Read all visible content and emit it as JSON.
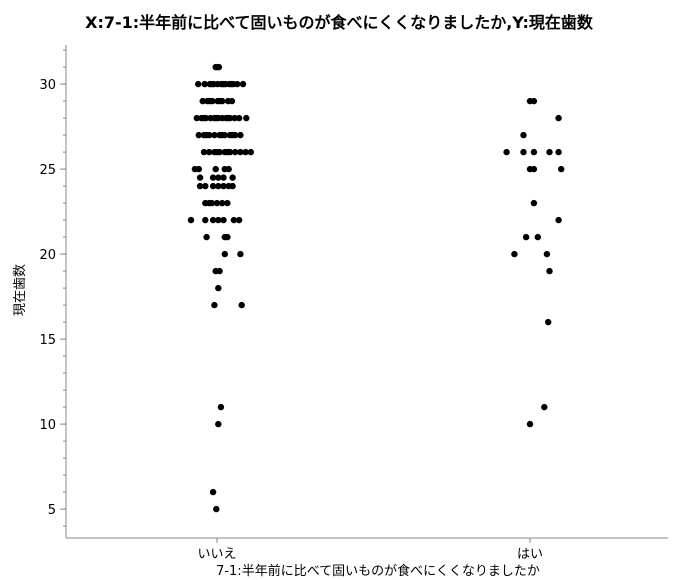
{
  "chart_data": {
    "type": "scatter",
    "title": "X:7-1:半年前に比べて固いものが食べにくくなりましたか,Y:現在歯数",
    "xlabel": "7-1:半年前に比べて固いものが食べにくくなりましたか",
    "ylabel": "現在歯数",
    "categories": [
      "いいえ",
      "はい"
    ],
    "ylim": [
      3.3,
      32.3
    ],
    "yticks": [
      5,
      10,
      15,
      20,
      25,
      30
    ],
    "grid": false,
    "series": [
      {
        "category": "いいえ",
        "color": "#000000",
        "points": [
          [
            0.0,
            31
          ],
          [
            0.15,
            31
          ],
          [
            -0.1,
            31
          ],
          [
            -1.45,
            30
          ],
          [
            -0.95,
            30
          ],
          [
            -0.55,
            30
          ],
          [
            -0.25,
            30
          ],
          [
            0.05,
            30
          ],
          [
            0.35,
            30
          ],
          [
            0.65,
            30
          ],
          [
            0.95,
            30
          ],
          [
            1.25,
            30
          ],
          [
            1.55,
            30
          ],
          [
            2.0,
            30
          ],
          [
            -0.4,
            30
          ],
          [
            0.5,
            30
          ],
          [
            1.1,
            30
          ],
          [
            -1.1,
            29
          ],
          [
            -0.75,
            29
          ],
          [
            -0.35,
            29
          ],
          [
            0.05,
            29
          ],
          [
            0.4,
            29
          ],
          [
            0.85,
            29
          ],
          [
            1.15,
            29
          ],
          [
            -0.55,
            29
          ],
          [
            0.2,
            29
          ],
          [
            -1.55,
            28
          ],
          [
            -1.2,
            28
          ],
          [
            -0.85,
            28
          ],
          [
            -0.5,
            28
          ],
          [
            -0.2,
            28
          ],
          [
            0.1,
            28
          ],
          [
            0.4,
            28
          ],
          [
            0.7,
            28
          ],
          [
            1.0,
            28
          ],
          [
            1.35,
            28
          ],
          [
            1.7,
            28
          ],
          [
            2.25,
            28
          ],
          [
            -1.0,
            28
          ],
          [
            -0.05,
            28
          ],
          [
            0.85,
            28
          ],
          [
            -1.4,
            27
          ],
          [
            -1.0,
            27
          ],
          [
            -0.6,
            27
          ],
          [
            -0.2,
            27
          ],
          [
            0.2,
            27
          ],
          [
            0.6,
            27
          ],
          [
            1.0,
            27
          ],
          [
            1.4,
            27
          ],
          [
            1.8,
            27
          ],
          [
            -0.8,
            27
          ],
          [
            0.4,
            27
          ],
          [
            1.2,
            27
          ],
          [
            -1.0,
            26
          ],
          [
            -0.6,
            26
          ],
          [
            -0.2,
            26
          ],
          [
            0.2,
            26
          ],
          [
            0.6,
            26
          ],
          [
            1.0,
            26
          ],
          [
            1.4,
            26
          ],
          [
            1.8,
            26
          ],
          [
            2.2,
            26
          ],
          [
            2.6,
            26
          ],
          [
            0.0,
            26
          ],
          [
            0.8,
            26
          ],
          [
            -1.7,
            25
          ],
          [
            -1.4,
            25
          ],
          [
            -0.1,
            25
          ],
          [
            0.6,
            25
          ],
          [
            0.9,
            25
          ],
          [
            -1.3,
            24.5
          ],
          [
            -0.3,
            24.5
          ],
          [
            0.1,
            24.5
          ],
          [
            0.5,
            24.5
          ],
          [
            1.2,
            24.5
          ],
          [
            -1.3,
            24
          ],
          [
            -0.9,
            24
          ],
          [
            -0.3,
            24
          ],
          [
            0.1,
            24
          ],
          [
            0.5,
            24
          ],
          [
            0.9,
            24
          ],
          [
            1.2,
            24
          ],
          [
            -0.9,
            23
          ],
          [
            -0.4,
            23
          ],
          [
            0.0,
            23
          ],
          [
            0.4,
            23
          ],
          [
            0.8,
            23
          ],
          [
            -0.6,
            23
          ],
          [
            -2.0,
            22
          ],
          [
            -0.9,
            22
          ],
          [
            -0.3,
            22
          ],
          [
            0.1,
            22
          ],
          [
            0.5,
            22
          ],
          [
            1.3,
            22
          ],
          [
            1.7,
            22
          ],
          [
            -0.8,
            21
          ],
          [
            0.6,
            21
          ],
          [
            0.8,
            21
          ],
          [
            0.6,
            20
          ],
          [
            1.8,
            20
          ],
          [
            -0.1,
            19
          ],
          [
            0.2,
            19
          ],
          [
            0.1,
            18
          ],
          [
            -0.2,
            17
          ],
          [
            1.9,
            17
          ],
          [
            0.3,
            11
          ],
          [
            0.1,
            10
          ],
          [
            -0.3,
            6
          ],
          [
            -0.05,
            5
          ]
        ]
      },
      {
        "category": "はい",
        "color": "#000000",
        "points": [
          [
            0.0,
            29
          ],
          [
            0.3,
            29
          ],
          [
            2.2,
            28
          ],
          [
            -0.5,
            27
          ],
          [
            -1.8,
            26
          ],
          [
            -0.5,
            26
          ],
          [
            0.3,
            26
          ],
          [
            1.5,
            26
          ],
          [
            2.2,
            26
          ],
          [
            0.0,
            25
          ],
          [
            0.3,
            25
          ],
          [
            2.4,
            25
          ],
          [
            0.3,
            23
          ],
          [
            2.2,
            22
          ],
          [
            -0.3,
            21
          ],
          [
            0.6,
            21
          ],
          [
            -1.2,
            20
          ],
          [
            1.3,
            20
          ],
          [
            1.5,
            19
          ],
          [
            1.4,
            16
          ],
          [
            1.1,
            11
          ],
          [
            0.0,
            10
          ]
        ]
      }
    ]
  }
}
